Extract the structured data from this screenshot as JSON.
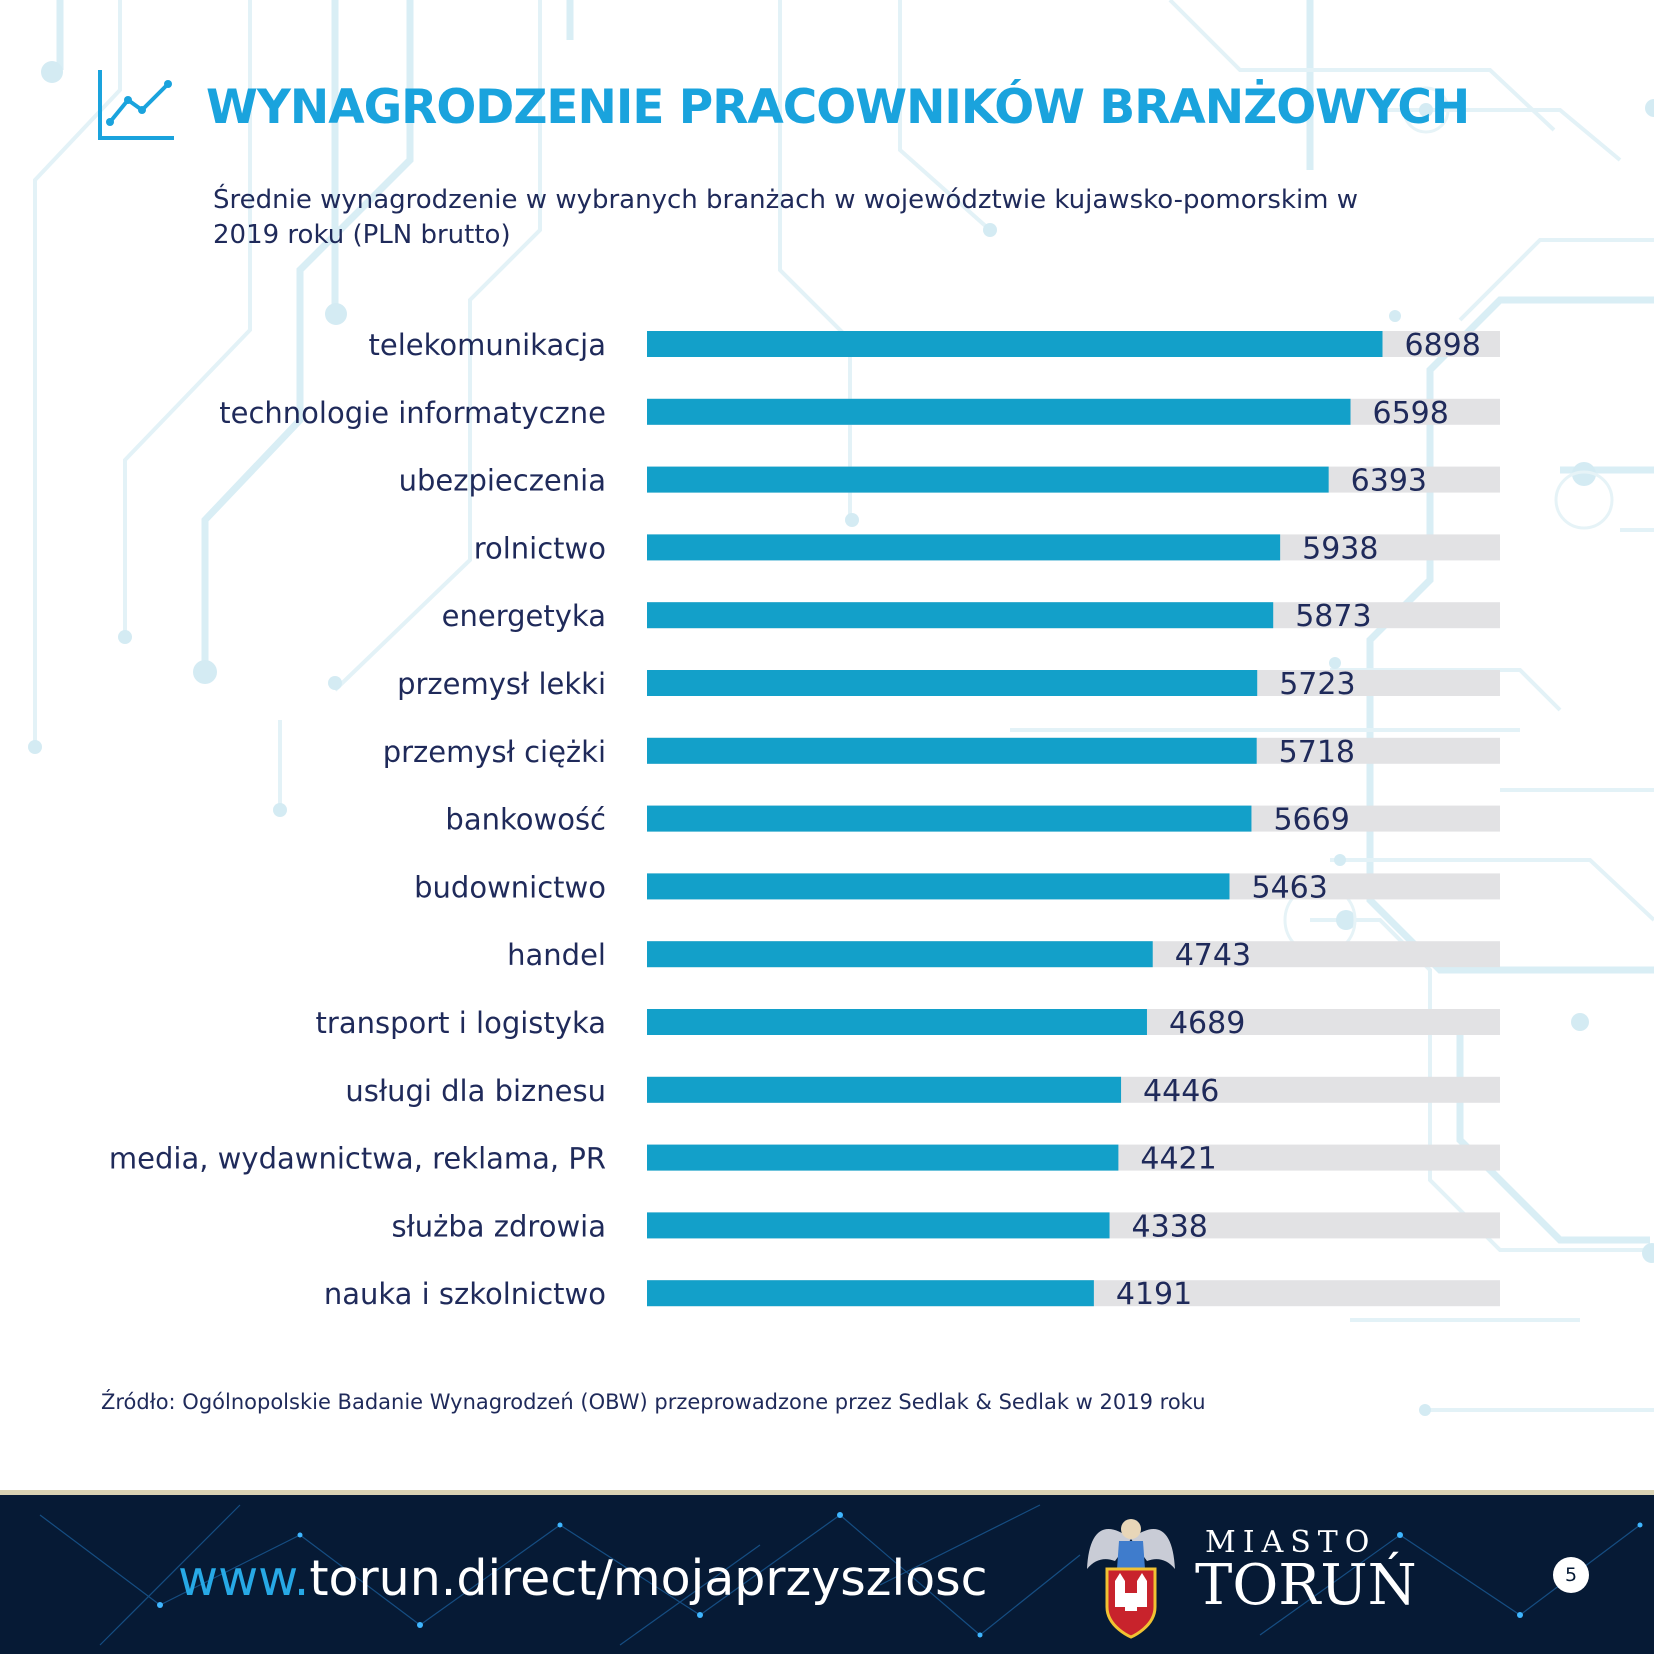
{
  "header": {
    "title": "WYNAGRODZENIE PRACOWNIKÓW BRANŻOWYCH",
    "subtitle": "Średnie wynagrodzenie w wybranych branżach w województwie kujawsko-pomorskim w 2019 roku (PLN brutto)",
    "icon": "line-chart-icon"
  },
  "chart_data": {
    "type": "bar",
    "orientation": "horizontal",
    "title": "Średnie wynagrodzenie w wybranych branżach w województwie kujawsko-pomorskim w 2019 roku (PLN brutto)",
    "xlabel": "",
    "ylabel": "",
    "xlim": [
      0,
      8000
    ],
    "categories": [
      "telekomunikacja",
      "technologie informatyczne",
      "ubezpieczenia",
      "rolnictwo",
      "energetyka",
      "przemysł lekki",
      "przemysł ciężki",
      "bankowość",
      "budownictwo",
      "handel",
      "transport i logistyka",
      "usługi dla biznesu",
      "media, wydawnictwa, reklama, PR",
      "służba zdrowia",
      "nauka i szkolnictwo"
    ],
    "values": [
      6898,
      6598,
      6393,
      5938,
      5873,
      5723,
      5718,
      5669,
      5463,
      4743,
      4689,
      4446,
      4421,
      4338,
      4191
    ],
    "grid": false,
    "bar_color": "#13a0c9",
    "track_color": "#e2e2e4",
    "label_color": "#1f2a5a"
  },
  "source": {
    "text": "Źródło:  Ogólnopolskie Badanie Wynagrodzeń (OBW) przeprowadzone przez Sedlak & Sedlak w 2019 roku"
  },
  "footer": {
    "url_prefix": "www.",
    "url_rest": "torun.direct/mojaprzyszlosc",
    "brand_small": "MIASTO",
    "brand_large": "TORUŃ",
    "page_number": "5"
  },
  "colors": {
    "title": "#1aa3dd",
    "text": "#1f2a5a",
    "footer_bg": "#061a35",
    "circuit": "#d7edf4"
  }
}
